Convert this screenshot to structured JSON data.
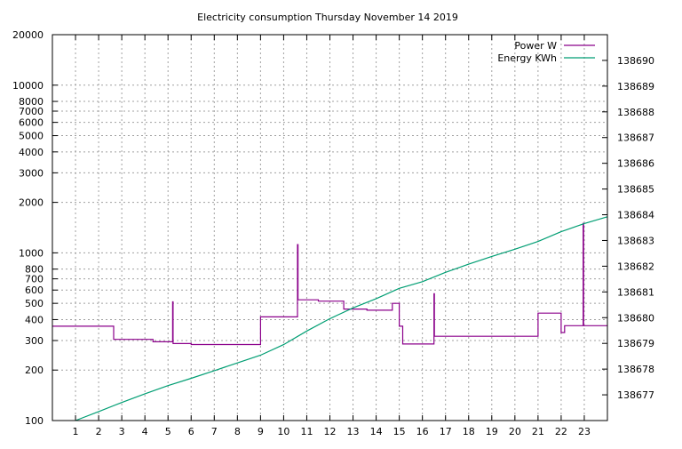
{
  "chart_data": {
    "type": "line",
    "title": "Electricity consumption Thursday November 14 2019",
    "xlabel": "",
    "ylabel": "",
    "y2label": "",
    "xlim": [
      0,
      24
    ],
    "ylim": [
      100,
      20000
    ],
    "y_scale": "log",
    "y2lim": [
      138676,
      138691
    ],
    "x_ticks": [
      "1",
      "2",
      "3",
      "4",
      "5",
      "6",
      "7",
      "8",
      "9",
      "10",
      "11",
      "12",
      "13",
      "14",
      "15",
      "16",
      "17",
      "18",
      "19",
      "20",
      "21",
      "22",
      "23"
    ],
    "y_ticks": [
      {
        "value": 100,
        "label": "100"
      },
      {
        "value": 200,
        "label": "200"
      },
      {
        "value": 300,
        "label": "300"
      },
      {
        "value": 400,
        "label": "400"
      },
      {
        "value": 500,
        "label": "500"
      },
      {
        "value": 600,
        "label": "600"
      },
      {
        "value": 700,
        "label": "700"
      },
      {
        "value": 800,
        "label": "800"
      },
      {
        "value": 1000,
        "label": "1000"
      },
      {
        "value": 2000,
        "label": "2000"
      },
      {
        "value": 3000,
        "label": "3000"
      },
      {
        "value": 4000,
        "label": "4000"
      },
      {
        "value": 5000,
        "label": "5000"
      },
      {
        "value": 6000,
        "label": "6000"
      },
      {
        "value": 7000,
        "label": "7000"
      },
      {
        "value": 8000,
        "label": "8000"
      },
      {
        "value": 10000,
        "label": "10000"
      },
      {
        "value": 20000,
        "label": "20000"
      }
    ],
    "y2_ticks": [
      "138677",
      "138678",
      "138679",
      "138680",
      "138681",
      "138682",
      "138683",
      "138684",
      "138685",
      "138686",
      "138687",
      "138688",
      "138689",
      "138690"
    ],
    "grid": true,
    "legend_position": "top-right",
    "series": [
      {
        "name": "Power W",
        "axis": "y",
        "color": "#8b008b",
        "step": true,
        "points": [
          [
            0,
            365
          ],
          [
            2.65,
            365
          ],
          [
            2.65,
            305
          ],
          [
            4.35,
            305
          ],
          [
            4.35,
            295
          ],
          [
            5.2,
            295
          ],
          [
            5.2,
            510
          ],
          [
            5.22,
            510
          ],
          [
            5.22,
            288
          ],
          [
            6.0,
            288
          ],
          [
            6.0,
            284
          ],
          [
            9.0,
            284
          ],
          [
            9.0,
            415
          ],
          [
            10.6,
            415
          ],
          [
            10.6,
            1120
          ],
          [
            10.62,
            1120
          ],
          [
            10.62,
            525
          ],
          [
            11.5,
            525
          ],
          [
            11.5,
            515
          ],
          [
            12.6,
            515
          ],
          [
            12.6,
            462
          ],
          [
            13.6,
            462
          ],
          [
            13.6,
            455
          ],
          [
            14.7,
            455
          ],
          [
            14.7,
            500
          ],
          [
            15.0,
            500
          ],
          [
            15.0,
            365
          ],
          [
            15.15,
            365
          ],
          [
            15.15,
            286
          ],
          [
            16.5,
            286
          ],
          [
            16.5,
            570
          ],
          [
            16.52,
            570
          ],
          [
            16.52,
            318
          ],
          [
            21.0,
            318
          ],
          [
            21.0,
            437
          ],
          [
            22.0,
            437
          ],
          [
            22.0,
            335
          ],
          [
            22.15,
            335
          ],
          [
            22.15,
            368
          ],
          [
            22.95,
            368
          ],
          [
            22.95,
            1500
          ],
          [
            22.97,
            1500
          ],
          [
            22.97,
            368
          ],
          [
            24.0,
            368
          ]
        ]
      },
      {
        "name": "Energy KWh",
        "axis": "y2",
        "color": "#009e73",
        "step": false,
        "points": [
          [
            1,
            138676.0
          ],
          [
            2,
            138676.35
          ],
          [
            3,
            138676.7
          ],
          [
            4,
            138677.04
          ],
          [
            5,
            138677.36
          ],
          [
            6,
            138677.64
          ],
          [
            7,
            138677.94
          ],
          [
            8,
            138678.24
          ],
          [
            9,
            138678.54
          ],
          [
            10,
            138678.95
          ],
          [
            11,
            138679.48
          ],
          [
            12,
            138679.96
          ],
          [
            13,
            138680.38
          ],
          [
            14,
            138680.74
          ],
          [
            15,
            138681.14
          ],
          [
            16,
            138681.4
          ],
          [
            17,
            138681.76
          ],
          [
            18,
            138682.08
          ],
          [
            19,
            138682.38
          ],
          [
            20,
            138682.66
          ],
          [
            21,
            138682.96
          ],
          [
            22,
            138683.34
          ],
          [
            23,
            138683.66
          ],
          [
            24,
            138683.92
          ]
        ]
      }
    ]
  }
}
